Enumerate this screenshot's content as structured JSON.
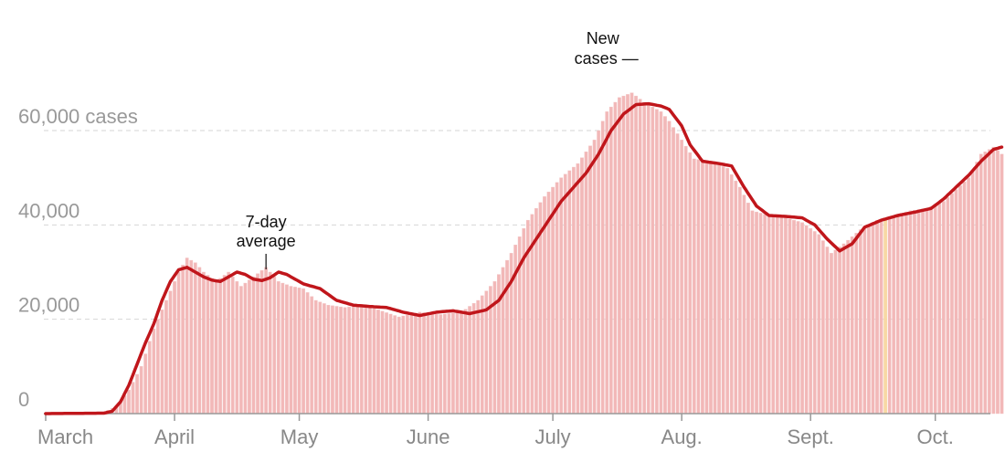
{
  "chart_data": {
    "type": "bar",
    "y_tick_labels": [
      "0",
      "20,000",
      "40,000",
      "60,000 cases"
    ],
    "y_ticks": [
      0,
      20000,
      40000,
      60000
    ],
    "ylim": [
      0,
      75000
    ],
    "x_tick_labels": [
      "March",
      "April",
      "May",
      "June",
      "July",
      "Aug.",
      "Sept.",
      "Oct."
    ],
    "x_tick_days": [
      0,
      31,
      61,
      92,
      122,
      153,
      184,
      214
    ],
    "grid": true,
    "bar_color": "#f2b8b8",
    "bar_outline_color": "#f3c4c4",
    "line_color": "#c0161b",
    "highlight_color": "#f7d8a4",
    "highlight_day": 202,
    "annotations": [
      {
        "label": "7-day average",
        "lines": [
          "7-day",
          "average"
        ],
        "day": 53
      },
      {
        "label": "New cases",
        "lines": [
          "New",
          "cases —"
        ],
        "day": 134
      }
    ],
    "daily_key_points": [
      [
        0,
        0
      ],
      [
        10,
        50
      ],
      [
        14,
        300
      ],
      [
        17,
        1500
      ],
      [
        20,
        5000
      ],
      [
        23,
        10000
      ],
      [
        26,
        18000
      ],
      [
        29,
        24000
      ],
      [
        32,
        30000
      ],
      [
        34,
        33000
      ],
      [
        36,
        32000
      ],
      [
        38,
        30000
      ],
      [
        41,
        28000
      ],
      [
        44,
        30000
      ],
      [
        47,
        27000
      ],
      [
        50,
        29000
      ],
      [
        53,
        31000
      ],
      [
        56,
        28000
      ],
      [
        59,
        27000
      ],
      [
        62,
        26500
      ],
      [
        65,
        24000
      ],
      [
        68,
        23000
      ],
      [
        72,
        22500
      ],
      [
        76,
        23000
      ],
      [
        80,
        22000
      ],
      [
        85,
        20500
      ],
      [
        90,
        21500
      ],
      [
        95,
        21000
      ],
      [
        100,
        21500
      ],
      [
        104,
        24000
      ],
      [
        108,
        28000
      ],
      [
        112,
        34000
      ],
      [
        116,
        41000
      ],
      [
        120,
        46000
      ],
      [
        124,
        50000
      ],
      [
        128,
        53000
      ],
      [
        132,
        58000
      ],
      [
        135,
        64000
      ],
      [
        138,
        67000
      ],
      [
        141,
        68000
      ],
      [
        144,
        66000
      ],
      [
        148,
        64000
      ],
      [
        150,
        62000
      ],
      [
        153,
        58000
      ],
      [
        156,
        54000
      ],
      [
        160,
        53500
      ],
      [
        164,
        52000
      ],
      [
        167,
        48000
      ],
      [
        170,
        43000
      ],
      [
        174,
        42000
      ],
      [
        178,
        41500
      ],
      [
        182,
        40500
      ],
      [
        186,
        38000
      ],
      [
        189,
        34000
      ],
      [
        192,
        36000
      ],
      [
        196,
        39000
      ],
      [
        200,
        41000
      ],
      [
        204,
        42000
      ],
      [
        208,
        43000
      ],
      [
        212,
        43500
      ],
      [
        216,
        45000
      ],
      [
        219,
        47500
      ],
      [
        222,
        50000
      ],
      [
        225,
        55000
      ],
      [
        228,
        56500
      ],
      [
        230,
        55000
      ]
    ],
    "average_key_points": [
      [
        0,
        0
      ],
      [
        14,
        100
      ],
      [
        16,
        500
      ],
      [
        18,
        2500
      ],
      [
        20,
        6000
      ],
      [
        22,
        10500
      ],
      [
        24,
        15000
      ],
      [
        26,
        19000
      ],
      [
        28,
        24000
      ],
      [
        30,
        28000
      ],
      [
        32,
        30500
      ],
      [
        34,
        31000
      ],
      [
        36,
        30000
      ],
      [
        38,
        29000
      ],
      [
        40,
        28300
      ],
      [
        42,
        28000
      ],
      [
        44,
        29000
      ],
      [
        46,
        30000
      ],
      [
        48,
        29500
      ],
      [
        50,
        28500
      ],
      [
        52,
        28200
      ],
      [
        54,
        28800
      ],
      [
        56,
        30000
      ],
      [
        58,
        29500
      ],
      [
        60,
        28500
      ],
      [
        62,
        27500
      ],
      [
        66,
        26500
      ],
      [
        70,
        24000
      ],
      [
        74,
        23000
      ],
      [
        78,
        22700
      ],
      [
        82,
        22500
      ],
      [
        86,
        21500
      ],
      [
        90,
        20800
      ],
      [
        94,
        21500
      ],
      [
        98,
        21800
      ],
      [
        102,
        21200
      ],
      [
        106,
        22000
      ],
      [
        109,
        24000
      ],
      [
        112,
        28000
      ],
      [
        115,
        33000
      ],
      [
        118,
        37000
      ],
      [
        121,
        41000
      ],
      [
        124,
        45000
      ],
      [
        127,
        48000
      ],
      [
        130,
        51000
      ],
      [
        133,
        55000
      ],
      [
        136,
        60000
      ],
      [
        139,
        63500
      ],
      [
        142,
        65500
      ],
      [
        145,
        65700
      ],
      [
        148,
        65200
      ],
      [
        150,
        64500
      ],
      [
        153,
        61000
      ],
      [
        155,
        57000
      ],
      [
        158,
        53500
      ],
      [
        162,
        53000
      ],
      [
        165,
        52500
      ],
      [
        168,
        48000
      ],
      [
        171,
        44000
      ],
      [
        174,
        42000
      ],
      [
        178,
        41800
      ],
      [
        182,
        41500
      ],
      [
        185,
        40000
      ],
      [
        188,
        37000
      ],
      [
        191,
        34500
      ],
      [
        194,
        36000
      ],
      [
        197,
        39500
      ],
      [
        201,
        41000
      ],
      [
        205,
        42000
      ],
      [
        209,
        42700
      ],
      [
        213,
        43500
      ],
      [
        216,
        45500
      ],
      [
        219,
        48000
      ],
      [
        222,
        50500
      ],
      [
        225,
        53500
      ],
      [
        228,
        56000
      ],
      [
        230,
        56500
      ]
    ]
  }
}
